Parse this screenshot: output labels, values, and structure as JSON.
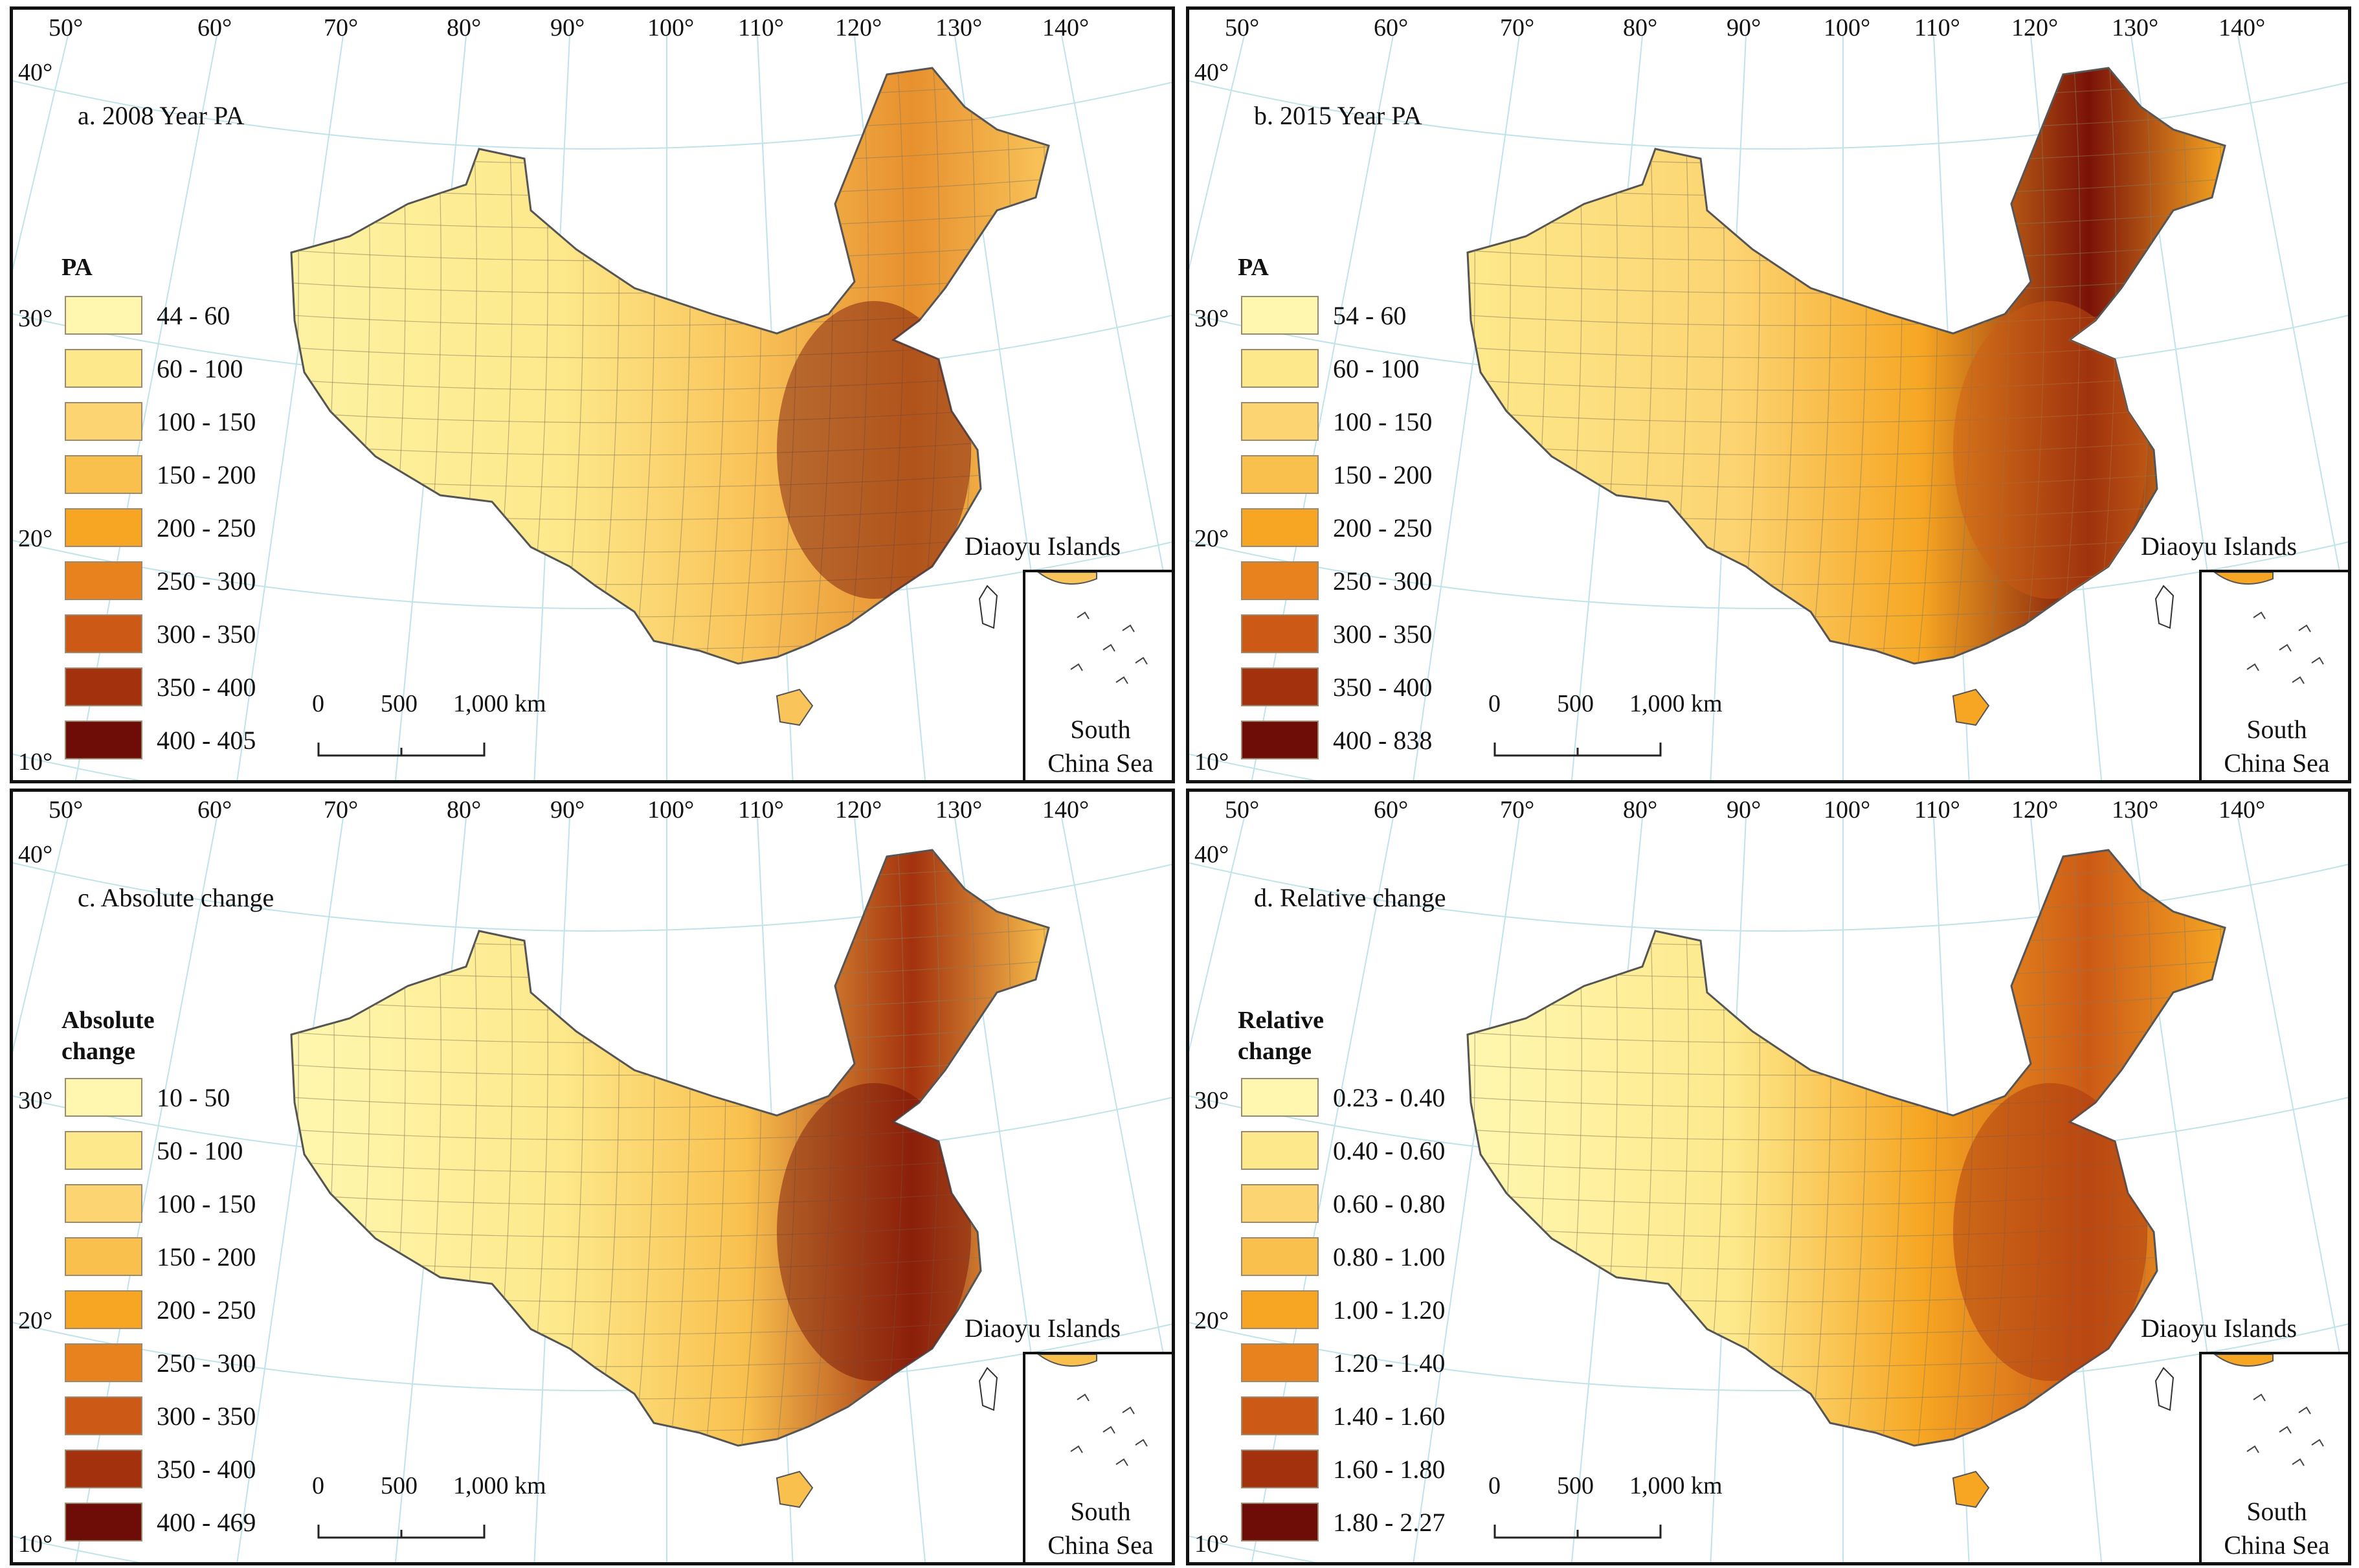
{
  "lon_ticks": [
    "50°",
    "60°",
    "70°",
    "80°",
    "90°",
    "100°",
    "110°",
    "120°",
    "130°",
    "140°"
  ],
  "lat_ticks": [
    "40°",
    "30°",
    "20°",
    "10°"
  ],
  "scale": {
    "zero": "0",
    "mid": "500",
    "end": "1,000 km"
  },
  "inset": {
    "label_line1": "South",
    "label_line2": "China Sea"
  },
  "islands_label": "Diaoyu Islands",
  "panels": [
    {
      "title": "a. 2008 Year PA",
      "legend_title_line1": "PA",
      "legend_title_line2": "",
      "map_colors": {
        "west": "#fdf2a2",
        "tibet": "#fde98c",
        "center": "#f9c45a",
        "east": "#e7902e",
        "hot": "#6e0c07"
      },
      "legend": [
        {
          "label": "44 - 60",
          "color": "#fff7b0"
        },
        {
          "label": "60 - 100",
          "color": "#fde98c"
        },
        {
          "label": "100 - 150",
          "color": "#fcd472"
        },
        {
          "label": "150 - 200",
          "color": "#f9c04e"
        },
        {
          "label": "200 - 250",
          "color": "#f6a623"
        },
        {
          "label": "250 - 300",
          "color": "#e7821f"
        },
        {
          "label": "300 - 350",
          "color": "#cc5a16"
        },
        {
          "label": "350 - 400",
          "color": "#a3310d"
        },
        {
          "label": "400 - 405",
          "color": "#6e0c07"
        }
      ]
    },
    {
      "title": "b. 2015 Year PA",
      "legend_title_line1": "PA",
      "legend_title_line2": "",
      "map_colors": {
        "west": "#fde98c",
        "tibet": "#fcd472",
        "center": "#f6a623",
        "east": "#7a1208",
        "hot": "#cc5a16"
      },
      "legend": [
        {
          "label": "54 - 60",
          "color": "#fff7b0"
        },
        {
          "label": "60 - 100",
          "color": "#fde98c"
        },
        {
          "label": "100 - 150",
          "color": "#fcd472"
        },
        {
          "label": "150 - 200",
          "color": "#f9c04e"
        },
        {
          "label": "200 - 250",
          "color": "#f6a623"
        },
        {
          "label": "250 - 300",
          "color": "#e7821f"
        },
        {
          "label": "300 - 350",
          "color": "#cc5a16"
        },
        {
          "label": "350 - 400",
          "color": "#a3310d"
        },
        {
          "label": "400 - 838",
          "color": "#6e0c07"
        }
      ]
    },
    {
      "title": "c. Absolute change",
      "legend_title_line1": "Absolute",
      "legend_title_line2": "change",
      "map_colors": {
        "west": "#fff7b0",
        "tibet": "#fde98c",
        "center": "#f9c04e",
        "east": "#a3310d",
        "hot": "#6e0c07"
      },
      "legend": [
        {
          "label": "10 - 50",
          "color": "#fff7b0"
        },
        {
          "label": "50 - 100",
          "color": "#fde98c"
        },
        {
          "label": "100 - 150",
          "color": "#fcd472"
        },
        {
          "label": "150 - 200",
          "color": "#f9c04e"
        },
        {
          "label": "200 - 250",
          "color": "#f6a623"
        },
        {
          "label": "250 - 300",
          "color": "#e7821f"
        },
        {
          "label": "300 - 350",
          "color": "#cc5a16"
        },
        {
          "label": "350 - 400",
          "color": "#a3310d"
        },
        {
          "label": "400 - 469",
          "color": "#6e0c07"
        }
      ]
    },
    {
      "title": "d. Relative change",
      "legend_title_line1": "Relative",
      "legend_title_line2": "change",
      "map_colors": {
        "west": "#fff7b0",
        "tibet": "#fde98c",
        "center": "#f6a623",
        "east": "#cc5a16",
        "hot": "#a3310d"
      },
      "legend": [
        {
          "label": "0.23 - 0.40",
          "color": "#fff7b0"
        },
        {
          "label": "0.40 - 0.60",
          "color": "#fde98c"
        },
        {
          "label": "0.60 - 0.80",
          "color": "#fcd472"
        },
        {
          "label": "0.80 - 1.00",
          "color": "#f9c04e"
        },
        {
          "label": "1.00 - 1.20",
          "color": "#f6a623"
        },
        {
          "label": "1.20 - 1.40",
          "color": "#e7821f"
        },
        {
          "label": "1.40 - 1.60",
          "color": "#cc5a16"
        },
        {
          "label": "1.60 - 1.80",
          "color": "#a3310d"
        },
        {
          "label": "1.80 - 2.27",
          "color": "#6e0c07"
        }
      ]
    }
  ]
}
